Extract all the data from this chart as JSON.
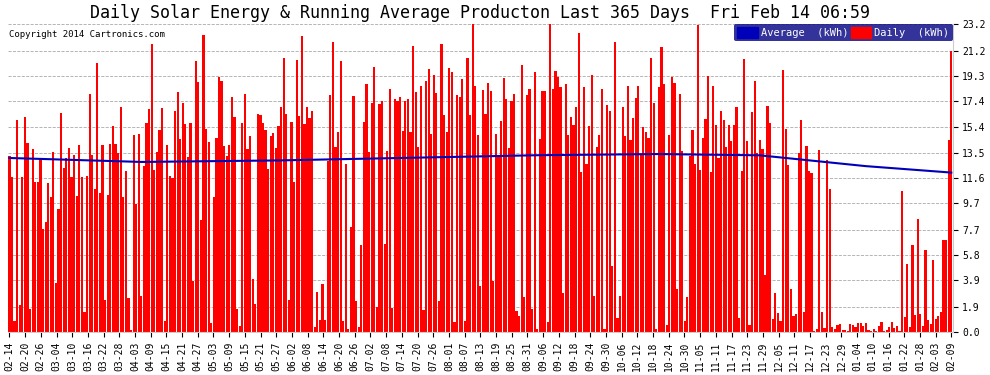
{
  "title": "Daily Solar Energy & Running Average Producton Last 365 Days  Fri Feb 14 06:59",
  "copyright": "Copyright 2014 Cartronics.com",
  "legend_avg": "Average  (kWh)",
  "legend_daily": "Daily  (kWh)",
  "bar_color": "#ff0000",
  "avg_line_color": "#0000bb",
  "background_color": "#ffffff",
  "plot_bg_color": "#ffffff",
  "grid_color": "#aaaaaa",
  "yticks": [
    0.0,
    1.9,
    3.9,
    5.8,
    7.7,
    9.7,
    11.6,
    13.5,
    15.4,
    17.4,
    19.3,
    21.2,
    23.2
  ],
  "ylim": [
    0,
    23.2
  ],
  "n_days": 365,
  "figsize": [
    9.9,
    3.75
  ],
  "dpi": 100,
  "title_fontsize": 12,
  "tick_fontsize": 7,
  "copyright_fontsize": 6.5,
  "xtick_labels": [
    "02-14",
    "02-20",
    "02-26",
    "03-04",
    "03-10",
    "03-16",
    "03-22",
    "03-28",
    "04-03",
    "04-09",
    "04-15",
    "04-21",
    "04-27",
    "05-03",
    "05-09",
    "05-15",
    "05-21",
    "05-27",
    "06-02",
    "06-08",
    "06-14",
    "06-20",
    "06-26",
    "07-02",
    "07-08",
    "07-14",
    "07-20",
    "07-26",
    "08-01",
    "08-07",
    "08-13",
    "08-19",
    "08-25",
    "08-31",
    "09-06",
    "09-12",
    "09-18",
    "09-24",
    "09-30",
    "10-06",
    "10-12",
    "10-18",
    "10-24",
    "10-30",
    "11-05",
    "11-11",
    "11-17",
    "11-23",
    "11-29",
    "12-05",
    "12-11",
    "12-17",
    "12-23",
    "12-29",
    "01-04",
    "01-10",
    "01-16",
    "01-22",
    "01-28",
    "02-03",
    "02-09"
  ],
  "avg_keypoints_x": [
    0,
    50,
    100,
    150,
    200,
    250,
    290,
    330,
    364
  ],
  "avg_keypoints_y": [
    13.1,
    12.8,
    12.9,
    13.1,
    13.3,
    13.4,
    13.3,
    12.5,
    12.0
  ]
}
